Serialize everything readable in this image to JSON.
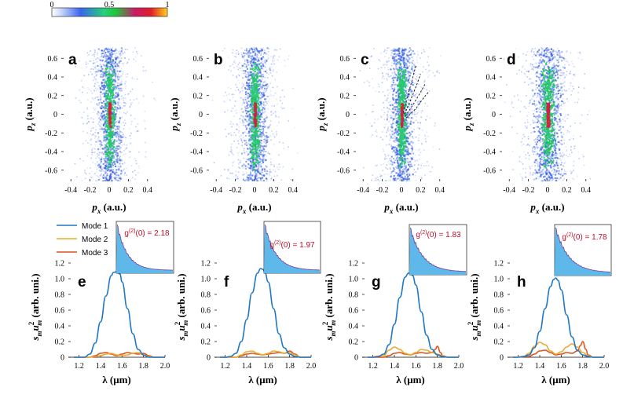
{
  "figure": {
    "colorbar": {
      "ticks": [
        "0",
        "0.5",
        "1"
      ]
    },
    "legend": {
      "entries": [
        {
          "label": "Mode 1",
          "color": "#1f77c8"
        },
        {
          "label": "Mode 2",
          "color": "#f0a830"
        },
        {
          "label": "Mode 3",
          "color": "#d9541e"
        }
      ]
    }
  },
  "chart_data": [
    {
      "type": "heatmap",
      "panel": "a",
      "xlabel": "p_x (a.u.)",
      "ylabel": "p_z (a.u.)",
      "xlim": [
        -0.5,
        0.5
      ],
      "ylim": [
        -0.72,
        0.72
      ],
      "xticks": [
        "-0.4",
        "-0.2",
        "0",
        "0.2",
        "0.4"
      ],
      "yticks": [
        "0.6",
        "0.4",
        "0.2",
        "0",
        "-0.2",
        "-0.4",
        "-0.6"
      ],
      "colorbar_range": [
        0,
        1
      ],
      "core_halfwidth": 0.042,
      "peak_level": 0.95,
      "dashed_fringes": []
    },
    {
      "type": "heatmap",
      "panel": "b",
      "xlabel": "p_x (a.u.)",
      "ylabel": "p_z (a.u.)",
      "xlim": [
        -0.5,
        0.5
      ],
      "ylim": [
        -0.72,
        0.72
      ],
      "xticks": [
        "-0.4",
        "-0.2",
        "0",
        "0.2",
        "0.4"
      ],
      "yticks": [
        "0.6",
        "0.4",
        "0.2",
        "0",
        "-0.2",
        "-0.4",
        "-0.6"
      ],
      "colorbar_range": [
        0,
        1
      ],
      "core_halfwidth": 0.045,
      "peak_level": 0.93,
      "dashed_fringes": []
    },
    {
      "type": "heatmap",
      "panel": "c",
      "xlabel": "p_x (a.u.)",
      "ylabel": "p_z (a.u.)",
      "xlim": [
        -0.5,
        0.5
      ],
      "ylim": [
        -0.72,
        0.72
      ],
      "xticks": [
        "-0.4",
        "-0.2",
        "0",
        "0.2",
        "0.4"
      ],
      "yticks": [
        "0.6",
        "0.4",
        "0.2",
        "0",
        "-0.2",
        "-0.4",
        "-0.6"
      ],
      "colorbar_range": [
        0,
        1
      ],
      "core_halfwidth": 0.04,
      "peak_level": 0.85,
      "dashed_fringes": [
        [
          [
            0.02,
            0.02
          ],
          [
            0.06,
            0.18
          ],
          [
            0.11,
            0.36
          ],
          [
            0.15,
            0.52
          ]
        ],
        [
          [
            0.03,
            0.0
          ],
          [
            0.09,
            0.14
          ],
          [
            0.15,
            0.29
          ],
          [
            0.2,
            0.43
          ]
        ],
        [
          [
            0.04,
            -0.02
          ],
          [
            0.12,
            0.1
          ],
          [
            0.19,
            0.22
          ],
          [
            0.25,
            0.33
          ]
        ],
        [
          [
            0.05,
            -0.04
          ],
          [
            0.15,
            0.06
          ],
          [
            0.22,
            0.16
          ],
          [
            0.29,
            0.25
          ]
        ]
      ]
    },
    {
      "type": "heatmap",
      "panel": "d",
      "xlabel": "p_x (a.u.)",
      "ylabel": "p_z (a.u.)",
      "xlim": [
        -0.5,
        0.5
      ],
      "ylim": [
        -0.72,
        0.72
      ],
      "xticks": [
        "-0.4",
        "-0.2",
        "0",
        "0.2",
        "0.4"
      ],
      "yticks": [
        "0.6",
        "0.4",
        "0.2",
        "0",
        "-0.2",
        "-0.4",
        "-0.6"
      ],
      "colorbar_range": [
        0,
        1
      ],
      "core_halfwidth": 0.06,
      "peak_level": 1.0,
      "dashed_fringes": []
    },
    {
      "type": "line",
      "panel": "e",
      "xlabel": "λ (μm)",
      "ylabel": "s_m u_m^2 (arb. uni.)",
      "xlim": [
        1.1,
        2.0
      ],
      "ylim": [
        0,
        1.2
      ],
      "xticks": [
        "1.2",
        "1.4",
        "1.6",
        "1.8",
        "2.0"
      ],
      "yticks": [
        "1.2",
        "1.0",
        "0.8",
        "0.6",
        "0.4",
        "0.2",
        "0"
      ],
      "series": [
        {
          "name": "Mode 1",
          "color": "#1f77c8",
          "x": [
            1.15,
            1.2,
            1.25,
            1.3,
            1.35,
            1.4,
            1.45,
            1.5,
            1.52,
            1.55,
            1.58,
            1.6,
            1.65,
            1.7,
            1.75,
            1.8,
            1.85,
            1.9,
            2.0
          ],
          "y": [
            0,
            0,
            0,
            0.04,
            0.18,
            0.45,
            0.78,
            1.04,
            1.08,
            1.09,
            1.06,
            0.96,
            0.62,
            0.3,
            0.1,
            0.03,
            0,
            0,
            0
          ]
        },
        {
          "name": "Mode 2",
          "color": "#f0a830",
          "x": [
            1.15,
            1.3,
            1.35,
            1.4,
            1.45,
            1.5,
            1.55,
            1.6,
            1.65,
            1.7,
            1.75,
            1.8,
            1.85,
            1.9,
            2.0
          ],
          "y": [
            0,
            0,
            0.01,
            0.02,
            0.04,
            0.05,
            0.03,
            0.02,
            0.03,
            0.05,
            0.06,
            0.03,
            0.01,
            0,
            0
          ]
        },
        {
          "name": "Mode 3",
          "color": "#d9541e",
          "x": [
            1.15,
            1.3,
            1.35,
            1.4,
            1.45,
            1.5,
            1.55,
            1.6,
            1.65,
            1.7,
            1.75,
            1.8,
            1.85,
            1.9,
            2.0
          ],
          "y": [
            0,
            0,
            0.02,
            0.05,
            0.06,
            0.04,
            0.02,
            0.04,
            0.06,
            0.05,
            0.04,
            0.05,
            0.02,
            0,
            0
          ]
        }
      ],
      "inset": {
        "label": "g^(2)(0) = 2.18",
        "curve": "exp",
        "decay": 5.5
      }
    },
    {
      "type": "line",
      "panel": "f",
      "xlabel": "λ (μm)",
      "ylabel": "s_m u_m^2 (arb. uni.)",
      "xlim": [
        1.1,
        2.0
      ],
      "ylim": [
        0,
        1.2
      ],
      "xticks": [
        "1.2",
        "1.4",
        "1.6",
        "1.8",
        "2.0"
      ],
      "yticks": [
        "1.2",
        "1.0",
        "0.8",
        "0.6",
        "0.4",
        "0.2",
        "0"
      ],
      "series": [
        {
          "name": "Mode 1",
          "color": "#1f77c8",
          "x": [
            1.15,
            1.2,
            1.25,
            1.3,
            1.35,
            1.4,
            1.45,
            1.5,
            1.53,
            1.55,
            1.57,
            1.6,
            1.65,
            1.7,
            1.75,
            1.8,
            1.85,
            1.9,
            2.0
          ],
          "y": [
            0,
            0,
            0.01,
            0.05,
            0.2,
            0.48,
            0.82,
            1.07,
            1.13,
            1.12,
            1.08,
            0.96,
            0.62,
            0.3,
            0.12,
            0.04,
            0.01,
            0,
            0
          ]
        },
        {
          "name": "Mode 2",
          "color": "#f0a830",
          "x": [
            1.15,
            1.3,
            1.35,
            1.4,
            1.45,
            1.5,
            1.55,
            1.6,
            1.65,
            1.7,
            1.75,
            1.8,
            1.85,
            1.9,
            2.0
          ],
          "y": [
            0,
            0,
            0.03,
            0.07,
            0.08,
            0.05,
            0.03,
            0.05,
            0.08,
            0.07,
            0.05,
            0.06,
            0.03,
            0,
            0
          ]
        },
        {
          "name": "Mode 3",
          "color": "#d9541e",
          "x": [
            1.15,
            1.3,
            1.35,
            1.4,
            1.45,
            1.5,
            1.55,
            1.6,
            1.65,
            1.7,
            1.75,
            1.8,
            1.85,
            1.9,
            2.0
          ],
          "y": [
            0,
            0,
            0.02,
            0.04,
            0.05,
            0.04,
            0.03,
            0.04,
            0.05,
            0.06,
            0.05,
            0.08,
            0.04,
            0,
            0
          ]
        }
      ],
      "inset": {
        "label": "g^(2)(0) = 1.97",
        "curve": "exp",
        "decay": 5.0
      }
    },
    {
      "type": "line",
      "panel": "g",
      "xlabel": "λ (μm)",
      "ylabel": "s_m u_m^2 (arb. uni.)",
      "xlim": [
        1.1,
        2.0
      ],
      "ylim": [
        0,
        1.2
      ],
      "xticks": [
        "1.2",
        "1.4",
        "1.6",
        "1.8",
        "2.0"
      ],
      "yticks": [
        "1.2",
        "1.0",
        "0.8",
        "0.6",
        "0.4",
        "0.2",
        "0"
      ],
      "series": [
        {
          "name": "Mode 1",
          "color": "#1f77c8",
          "x": [
            1.15,
            1.2,
            1.25,
            1.3,
            1.35,
            1.4,
            1.45,
            1.5,
            1.53,
            1.55,
            1.57,
            1.6,
            1.65,
            1.7,
            1.75,
            1.8,
            1.85,
            1.9,
            2.0
          ],
          "y": [
            0,
            0,
            0.01,
            0.04,
            0.16,
            0.42,
            0.76,
            1.02,
            1.07,
            1.08,
            1.04,
            0.92,
            0.58,
            0.28,
            0.1,
            0.03,
            0.01,
            0,
            0
          ]
        },
        {
          "name": "Mode 2",
          "color": "#f0a830",
          "x": [
            1.15,
            1.3,
            1.35,
            1.4,
            1.45,
            1.5,
            1.55,
            1.6,
            1.65,
            1.7,
            1.75,
            1.8,
            1.85,
            1.9,
            2.0
          ],
          "y": [
            0,
            0.02,
            0.09,
            0.13,
            0.1,
            0.05,
            0.03,
            0.06,
            0.1,
            0.09,
            0.06,
            0.04,
            0.02,
            0,
            0
          ]
        },
        {
          "name": "Mode 3",
          "color": "#d9541e",
          "x": [
            1.15,
            1.3,
            1.35,
            1.4,
            1.45,
            1.5,
            1.55,
            1.6,
            1.65,
            1.7,
            1.75,
            1.78,
            1.8,
            1.83,
            1.85,
            1.9,
            2.0
          ],
          "y": [
            0,
            0,
            0.02,
            0.05,
            0.06,
            0.04,
            0.03,
            0.05,
            0.06,
            0.05,
            0.06,
            0.1,
            0.14,
            0.06,
            0.02,
            0,
            0
          ]
        }
      ],
      "inset": {
        "label": "g^(2)(0) = 1.83",
        "curve": "exp",
        "decay": 4.5
      }
    },
    {
      "type": "line",
      "panel": "h",
      "xlabel": "λ (μm)",
      "ylabel": "s_m u_m^2 (arb. uni.)",
      "xlim": [
        1.1,
        2.0
      ],
      "ylim": [
        0,
        1.2
      ],
      "xticks": [
        "1.2",
        "1.4",
        "1.6",
        "1.8",
        "2.0"
      ],
      "yticks": [
        "1.2",
        "1.0",
        "0.8",
        "0.6",
        "0.4",
        "0.2",
        "0"
      ],
      "series": [
        {
          "name": "Mode 1",
          "color": "#1f77c8",
          "x": [
            1.15,
            1.2,
            1.25,
            1.3,
            1.35,
            1.4,
            1.45,
            1.5,
            1.53,
            1.55,
            1.57,
            1.6,
            1.65,
            1.7,
            1.75,
            1.8,
            1.85,
            1.9,
            2.0
          ],
          "y": [
            0,
            0,
            0.01,
            0.03,
            0.12,
            0.33,
            0.62,
            0.9,
            0.99,
            1.01,
            0.98,
            0.86,
            0.54,
            0.26,
            0.09,
            0.03,
            0.01,
            0,
            0
          ]
        },
        {
          "name": "Mode 2",
          "color": "#f0a830",
          "x": [
            1.15,
            1.25,
            1.3,
            1.35,
            1.4,
            1.45,
            1.5,
            1.55,
            1.6,
            1.65,
            1.7,
            1.75,
            1.8,
            1.85,
            1.9,
            2.0
          ],
          "y": [
            0,
            0.01,
            0.05,
            0.14,
            0.19,
            0.16,
            0.08,
            0.04,
            0.07,
            0.13,
            0.17,
            0.13,
            0.06,
            0.02,
            0,
            0
          ]
        },
        {
          "name": "Mode 3",
          "color": "#d9541e",
          "x": [
            1.15,
            1.3,
            1.35,
            1.4,
            1.45,
            1.5,
            1.55,
            1.6,
            1.65,
            1.7,
            1.75,
            1.78,
            1.8,
            1.83,
            1.85,
            1.9,
            2.0
          ],
          "y": [
            0,
            0.01,
            0.04,
            0.08,
            0.09,
            0.06,
            0.03,
            0.04,
            0.06,
            0.05,
            0.08,
            0.15,
            0.2,
            0.1,
            0.03,
            0,
            0
          ]
        }
      ],
      "inset": {
        "label": "g^(2)(0) = 1.78",
        "curve": "exp",
        "decay": 4.2
      }
    }
  ]
}
